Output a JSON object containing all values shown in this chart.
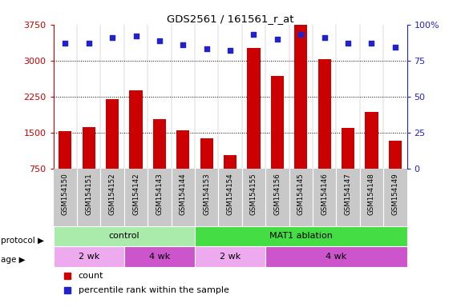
{
  "title": "GDS2561 / 161561_r_at",
  "samples": [
    "GSM154150",
    "GSM154151",
    "GSM154152",
    "GSM154142",
    "GSM154143",
    "GSM154144",
    "GSM154153",
    "GSM154154",
    "GSM154155",
    "GSM154156",
    "GSM154145",
    "GSM154146",
    "GSM154147",
    "GSM154148",
    "GSM154149"
  ],
  "counts": [
    1530,
    1610,
    2200,
    2380,
    1780,
    1540,
    1380,
    1020,
    3260,
    2680,
    3750,
    3030,
    1600,
    1920,
    1330
  ],
  "percentiles": [
    87,
    87,
    91,
    92,
    89,
    86,
    83,
    82,
    93,
    90,
    93,
    91,
    87,
    87,
    84
  ],
  "ylim_left": [
    750,
    3750
  ],
  "ylim_right": [
    0,
    100
  ],
  "yticks_left": [
    750,
    1500,
    2250,
    3000,
    3750
  ],
  "yticks_right": [
    0,
    25,
    50,
    75,
    100
  ],
  "ytick_right_labels": [
    "0",
    "25",
    "50",
    "75",
    "100%"
  ],
  "bar_color": "#cc0000",
  "dot_color": "#2222cc",
  "grid_color": "#000000",
  "sample_bg_color": "#c8c8c8",
  "protocol_groups": [
    {
      "label": "control",
      "start": 0,
      "end": 6,
      "color": "#aaeaaa"
    },
    {
      "label": "MAT1 ablation",
      "start": 6,
      "end": 15,
      "color": "#44dd44"
    }
  ],
  "age_groups": [
    {
      "label": "2 wk",
      "start": 0,
      "end": 3,
      "color": "#eeaaee"
    },
    {
      "label": "4 wk",
      "start": 3,
      "end": 6,
      "color": "#cc55cc"
    },
    {
      "label": "2 wk",
      "start": 6,
      "end": 9,
      "color": "#eeaaee"
    },
    {
      "label": "4 wk",
      "start": 9,
      "end": 15,
      "color": "#cc55cc"
    }
  ],
  "legend_count_color": "#cc0000",
  "legend_dot_color": "#2222cc",
  "protocol_label": "protocol",
  "age_label": "age",
  "n_samples": 15
}
